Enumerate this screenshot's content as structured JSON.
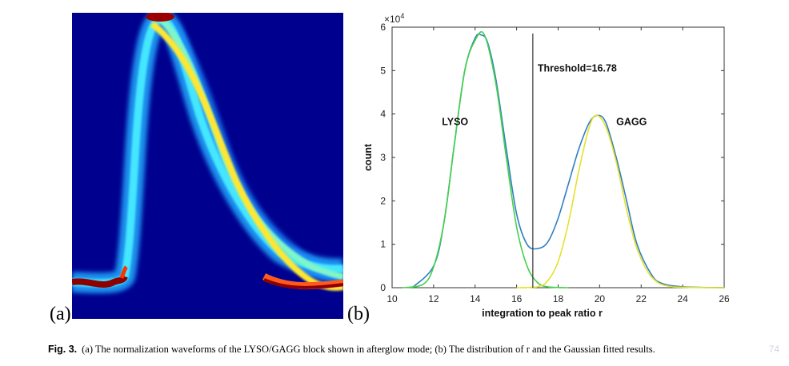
{
  "figure": {
    "panel_a_label": "(a)",
    "panel_b_label": "(b)",
    "caption_label": "Fig. 3.",
    "caption_text": "(a) The normalization waveforms of the LYSO/GAGG block shown in afterglow mode; (b) The distribution of r and the Gaussian fitted results.",
    "watermark": "74"
  },
  "panel_a": {
    "type": "heatmap",
    "background_color": "#00008f",
    "colormap": "jet"
  },
  "chart_data": {
    "type": "line",
    "xlabel": "integration to peak ratio r",
    "ylabel": "count",
    "y_exponent_label": "×10",
    "y_exponent_power": "4",
    "xlim": [
      10,
      26
    ],
    "ylim": [
      0,
      6
    ],
    "x_ticks": [
      "10",
      "12",
      "14",
      "16",
      "18",
      "20",
      "22",
      "24",
      "26"
    ],
    "y_ticks": [
      "0",
      "1",
      "2",
      "3",
      "4",
      "5",
      "6"
    ],
    "grid": false,
    "threshold": {
      "x": 16.78,
      "label": "Threshold=16.78"
    },
    "annotations": [
      {
        "text": "LYSO",
        "x": 12.4,
        "y": 3.75
      },
      {
        "text": "GAGG",
        "x": 20.8,
        "y": 3.75
      }
    ],
    "series": [
      {
        "color": "#2f7fc0",
        "x": [
          11,
          12,
          12.5,
          13,
          13.5,
          14,
          14.3,
          14.6,
          15,
          15.5,
          16,
          16.5,
          17,
          17.5,
          18,
          18.5,
          19,
          19.5,
          19.9,
          20.3,
          20.8,
          21.3,
          21.8,
          22.5,
          23,
          24,
          26
        ],
        "y": [
          0.01,
          0.5,
          1.5,
          3.3,
          5.0,
          5.75,
          5.82,
          5.65,
          4.8,
          3.2,
          1.7,
          1.0,
          0.9,
          1.05,
          1.6,
          2.4,
          3.2,
          3.8,
          3.97,
          3.8,
          3.0,
          2.0,
          1.0,
          0.3,
          0.1,
          0.02,
          0.0
        ]
      },
      {
        "color": "#44d04a",
        "x": [
          10.5,
          11.5,
          12,
          12.5,
          13,
          13.5,
          14,
          14.45,
          15,
          15.5,
          16,
          16.5,
          17,
          17.5,
          18.5
        ],
        "y": [
          0.0,
          0.08,
          0.48,
          1.5,
          3.3,
          5.0,
          5.7,
          5.82,
          4.7,
          3.0,
          1.4,
          0.5,
          0.12,
          0.02,
          0.0
        ]
      },
      {
        "color": "#e5e12a",
        "x": [
          16,
          17,
          17.5,
          18,
          18.5,
          19,
          19.5,
          19.85,
          20.3,
          20.8,
          21.3,
          21.8,
          22.5,
          23.5,
          26
        ],
        "y": [
          0.0,
          0.02,
          0.16,
          0.6,
          1.5,
          2.7,
          3.7,
          3.97,
          3.7,
          2.9,
          1.8,
          0.9,
          0.25,
          0.02,
          0.0
        ]
      }
    ]
  }
}
